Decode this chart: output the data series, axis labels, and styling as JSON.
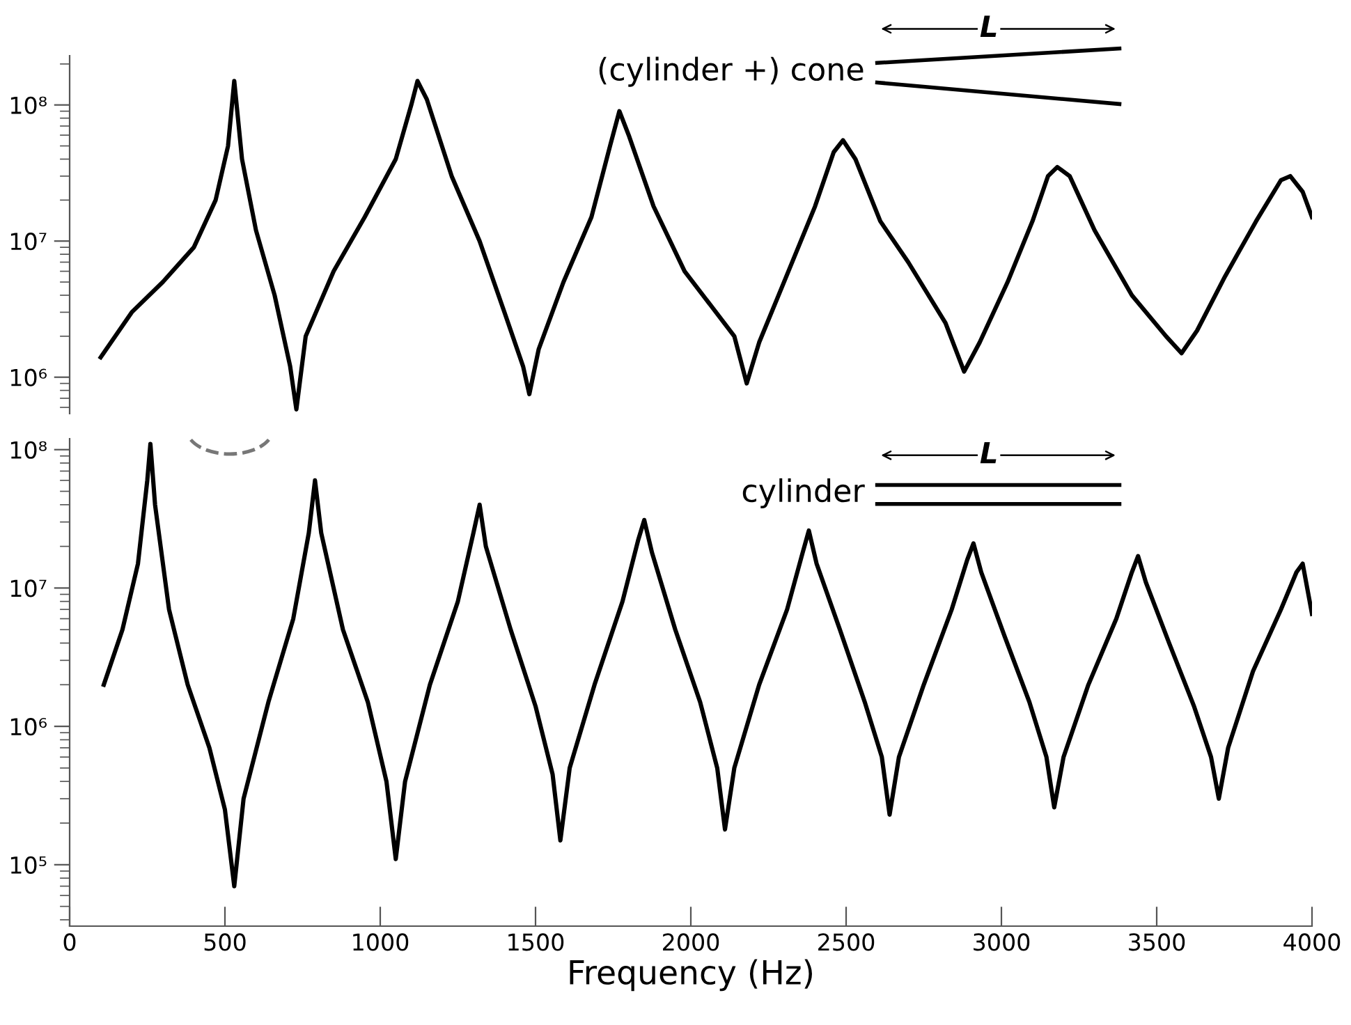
{
  "chart_data": [
    {
      "type": "line",
      "xlim": [
        0,
        4000
      ],
      "ylim": [
        540000,
        230000000
      ],
      "log": "y",
      "tick_labels": "y",
      "marker": "none",
      "line_style": "solid",
      "yticks": [
        {
          "value": 1000000,
          "label": "10⁶"
        },
        {
          "value": 10000000,
          "label": "10⁷"
        },
        {
          "value": 100000000,
          "label": "10⁸"
        }
      ],
      "annotations": [
        "(cylinder +) cone",
        "L"
      ],
      "series": [
        {
          "color": "#000000",
          "x": [
            100,
            200,
            300,
            400,
            470,
            510,
            530,
            555,
            600,
            660,
            710,
            730,
            760,
            850,
            950,
            1050,
            1100,
            1120,
            1150,
            1230,
            1320,
            1400,
            1460,
            1480,
            1510,
            1590,
            1680,
            1740,
            1770,
            1800,
            1880,
            1980,
            2140,
            2180,
            2220,
            2300,
            2400,
            2460,
            2490,
            2530,
            2610,
            2700,
            2820,
            2880,
            2930,
            3020,
            3100,
            3150,
            3180,
            3220,
            3300,
            3420,
            3530,
            3580,
            3630,
            3720,
            3820,
            3900,
            3930,
            3970,
            4000
          ],
          "values": [
            1400000,
            3000000,
            5000000,
            9000000,
            20000000,
            50000000,
            150000000,
            40000000,
            12000000,
            4000000,
            1200000,
            580000,
            2000000,
            6000000,
            15000000,
            40000000,
            100000000,
            150000000,
            110000000,
            30000000,
            10000000,
            3000000,
            1200000,
            750000,
            1600000,
            5000000,
            15000000,
            50000000,
            90000000,
            60000000,
            18000000,
            6000000,
            2000000,
            900000,
            1800000,
            5000000,
            18000000,
            45000000,
            55000000,
            40000000,
            14000000,
            7000000,
            2500000,
            1100000,
            1800000,
            5000000,
            14000000,
            30000000,
            35000000,
            30000000,
            12000000,
            4000000,
            2000000,
            1500000,
            2200000,
            5500000,
            14000000,
            28000000,
            30000000,
            23000000,
            15000000
          ]
        }
      ]
    },
    {
      "type": "line",
      "xlim": [
        0,
        4000
      ],
      "ylim": [
        36000,
        120000000
      ],
      "log": "y",
      "xlabel": "Frequency (Hz)",
      "marker": "none",
      "line_style": "solid",
      "xticks": [
        0,
        500,
        1000,
        1500,
        2000,
        2500,
        3000,
        3500,
        4000
      ],
      "yticks": [
        {
          "value": 100000,
          "label": "10⁵"
        },
        {
          "value": 1000000,
          "label": "10⁶"
        },
        {
          "value": 10000000,
          "label": "10⁷"
        },
        {
          "value": 100000000,
          "label": "10⁸"
        }
      ],
      "annotations": [
        "cylinder",
        "L"
      ],
      "series": [
        {
          "color": "#000000",
          "x": [
            110,
            170,
            220,
            250,
            260,
            275,
            320,
            380,
            450,
            500,
            530,
            560,
            640,
            720,
            770,
            790,
            810,
            880,
            960,
            1020,
            1050,
            1080,
            1160,
            1250,
            1300,
            1320,
            1340,
            1420,
            1500,
            1555,
            1580,
            1610,
            1690,
            1780,
            1830,
            1850,
            1875,
            1950,
            2030,
            2085,
            2110,
            2140,
            2220,
            2310,
            2360,
            2380,
            2405,
            2480,
            2560,
            2615,
            2640,
            2670,
            2750,
            2840,
            2890,
            2910,
            2935,
            3010,
            3090,
            3145,
            3170,
            3200,
            3280,
            3370,
            3420,
            3440,
            3465,
            3540,
            3620,
            3675,
            3700,
            3730,
            3810,
            3900,
            3950,
            3970,
            4000
          ],
          "values": [
            2000000,
            5000000,
            15000000,
            60000000,
            110000000,
            40000000,
            7000000,
            2000000,
            700000,
            250000,
            70000,
            300000,
            1500000,
            6000000,
            25000000,
            60000000,
            25000000,
            5000000,
            1500000,
            400000,
            110000,
            400000,
            2000000,
            8000000,
            25000000,
            40000000,
            20000000,
            5000000,
            1400000,
            450000,
            150000,
            500000,
            2000000,
            8000000,
            22000000,
            31000000,
            18000000,
            5000000,
            1500000,
            500000,
            180000,
            500000,
            2000000,
            7000000,
            18000000,
            26000000,
            15000000,
            5000000,
            1500000,
            600000,
            230000,
            600000,
            2000000,
            7000000,
            16000000,
            21000000,
            13000000,
            4500000,
            1500000,
            600000,
            260000,
            600000,
            2000000,
            6000000,
            13000000,
            17000000,
            11000000,
            4000000,
            1400000,
            600000,
            300000,
            700000,
            2500000,
            7000000,
            13000000,
            15000000,
            6500000
          ]
        }
      ]
    }
  ]
}
